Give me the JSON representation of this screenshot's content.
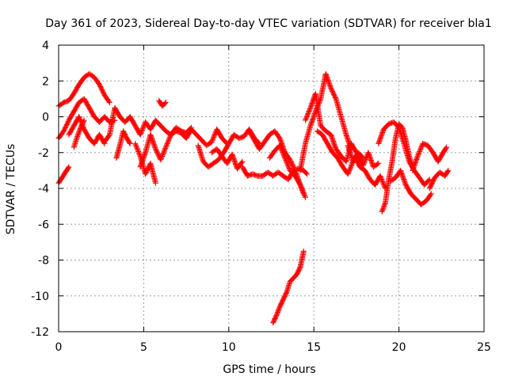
{
  "chart_data": {
    "type": "scatter",
    "title": "Day 361 of 2023, Sidereal Day-to-day VTEC variation (SDTVAR) for receiver bla1",
    "xlabel": "GPS time / hours",
    "ylabel": "SDTVAR / TECUs",
    "xlim": [
      0,
      25
    ],
    "ylim": [
      -12,
      4
    ],
    "xticks": [
      0,
      5,
      10,
      15,
      20,
      25
    ],
    "yticks": [
      -12,
      -10,
      -8,
      -6,
      -4,
      -2,
      0,
      2,
      4
    ],
    "grid": true,
    "marker": "+",
    "series": [
      {
        "name": "SDTVAR",
        "color": "#ff0000",
        "tracks": [
          {
            "x": [
              0.0,
              0.3,
              0.6,
              0.9,
              1.2,
              1.5,
              1.8,
              2.1,
              2.4,
              2.7,
              3.0
            ],
            "y": [
              0.6,
              0.8,
              0.9,
              1.3,
              1.8,
              2.2,
              2.4,
              2.2,
              1.8,
              1.2,
              0.8
            ]
          },
          {
            "x": [
              0.0,
              0.3,
              0.6,
              0.9,
              1.2,
              1.5,
              1.8,
              2.1,
              2.4,
              2.7,
              3.0,
              3.3
            ],
            "y": [
              -1.2,
              -0.8,
              -0.2,
              0.3,
              0.8,
              1.0,
              0.5,
              0.0,
              -0.3,
              0.0,
              -0.3,
              -0.2
            ]
          },
          {
            "x": [
              0.0,
              0.2,
              0.4,
              0.6
            ],
            "y": [
              -3.7,
              -3.4,
              -3.1,
              -2.8
            ]
          },
          {
            "x": [
              0.6,
              0.9,
              1.2,
              1.5,
              1.8,
              2.1,
              2.4,
              2.7
            ],
            "y": [
              -1.0,
              -0.5,
              0.0,
              -0.7,
              -1.2,
              -1.5,
              -1.0,
              -1.5
            ]
          },
          {
            "x": [
              0.9,
              1.1,
              1.3,
              1.5
            ],
            "y": [
              -1.7,
              -1.1,
              -0.6,
              -0.2
            ]
          },
          {
            "x": [
              2.7,
              3.0,
              3.3,
              3.6,
              3.9,
              4.2,
              4.5,
              4.8,
              5.1,
              5.4,
              5.7,
              6.0,
              6.3,
              6.6,
              6.9,
              7.2,
              7.5,
              7.8,
              8.1,
              8.4,
              8.7,
              9.0,
              9.3,
              9.6,
              9.9
            ],
            "y": [
              -1.4,
              -1.0,
              0.5,
              0.0,
              -0.3,
              0.0,
              -0.5,
              -1.0,
              -0.3,
              -0.7,
              -0.2,
              -0.5,
              -0.8,
              -1.0,
              -0.8,
              -0.9,
              -1.2,
              -0.7,
              -1.0,
              -1.3,
              -1.6,
              -1.4,
              -0.7,
              -1.2,
              -1.5
            ]
          },
          {
            "x": [
              3.4,
              3.6,
              3.8,
              4.0,
              4.2
            ],
            "y": [
              -2.3,
              -1.6,
              -0.8,
              -1.2,
              -1.5
            ]
          },
          {
            "x": [
              4.5,
              4.8,
              5.1,
              5.4,
              5.7
            ],
            "y": [
              -1.5,
              -2.2,
              -3.2,
              -2.6,
              -3.7
            ]
          },
          {
            "x": [
              4.8,
              5.1,
              5.4,
              5.7,
              6.0,
              6.3,
              6.6,
              6.9,
              7.2,
              7.5,
              7.8
            ],
            "y": [
              -2.8,
              -2.0,
              -1.0,
              -1.8,
              -2.4,
              -1.7,
              -1.0,
              -0.6,
              -0.8,
              -0.9,
              -0.6
            ]
          },
          {
            "x": [
              5.9,
              6.1,
              6.3
            ],
            "y": [
              0.9,
              0.6,
              0.8
            ]
          },
          {
            "x": [
              8.2,
              8.5,
              8.8,
              9.1,
              9.4,
              9.7,
              10.0,
              10.3,
              10.6,
              10.9,
              11.2,
              11.5,
              11.8
            ],
            "y": [
              -1.6,
              -2.5,
              -2.8,
              -2.6,
              -2.4,
              -2.0,
              -1.5,
              -1.0,
              -1.2,
              -1.1,
              -0.7,
              -1.2,
              -1.5
            ]
          },
          {
            "x": [
              9.0,
              9.3,
              9.6,
              9.9,
              10.2,
              10.5,
              10.8
            ],
            "y": [
              -2.0,
              -1.8,
              -2.2,
              -2.6,
              -2.1,
              -2.9,
              -2.5
            ]
          },
          {
            "x": [
              10.8,
              11.1,
              11.4,
              11.7,
              12.0,
              12.3,
              12.6,
              12.9,
              13.2,
              13.5,
              13.8,
              14.1,
              14.4,
              14.6
            ],
            "y": [
              -2.8,
              -3.3,
              -3.2,
              -3.3,
              -3.3,
              -3.1,
              -3.3,
              -3.1,
              -3.3,
              -3.5,
              -3.0,
              -2.9,
              -3.0,
              -3.2
            ]
          },
          {
            "x": [
              11.2,
              11.5,
              11.8,
              12.1,
              12.4,
              12.7,
              13.0,
              13.3,
              13.6,
              13.9,
              14.2,
              14.5
            ],
            "y": [
              -0.8,
              -1.3,
              -1.8,
              -1.4,
              -1.0,
              -0.8,
              -1.2,
              -2.0,
              -2.4,
              -3.0,
              -3.8,
              -4.5
            ]
          },
          {
            "x": [
              12.4,
              12.7,
              13.0,
              13.3,
              13.6,
              13.9,
              14.2,
              14.4
            ],
            "y": [
              -2.3,
              -1.9,
              -1.6,
              -2.3,
              -3.0,
              -3.3,
              -3.8,
              -4.3
            ]
          },
          {
            "x": [
              12.6,
              12.8,
              13.0,
              13.2,
              13.4,
              13.6,
              13.8,
              14.0,
              14.2,
              14.4
            ],
            "y": [
              -11.5,
              -11.1,
              -10.6,
              -10.2,
              -9.8,
              -9.2,
              -9.0,
              -8.8,
              -8.4,
              -7.5
            ]
          },
          {
            "x": [
              14.2,
              14.5,
              14.8,
              15.1,
              15.4,
              15.7,
              16.0,
              16.3,
              16.6,
              16.9,
              17.2
            ],
            "y": [
              -3.0,
              -1.5,
              -0.5,
              0.3,
              1.0,
              2.4,
              1.6,
              1.0,
              0.0,
              -1.0,
              -1.8
            ]
          },
          {
            "x": [
              14.5,
              14.8,
              15.1,
              15.4,
              15.7,
              16.0,
              16.3,
              16.6,
              16.9,
              17.2,
              17.5
            ],
            "y": [
              -0.2,
              0.5,
              1.3,
              -0.5,
              -0.8,
              -1.0,
              -1.8,
              -2.2,
              -2.5,
              -1.5,
              -2.0
            ]
          },
          {
            "x": [
              15.2,
              15.5,
              15.8,
              16.1,
              16.4,
              16.7,
              17.0,
              17.3,
              17.6,
              17.9
            ],
            "y": [
              -0.8,
              -1.0,
              -1.5,
              -2.0,
              -2.3,
              -2.8,
              -3.2,
              -2.5,
              -2.0,
              -2.3
            ]
          },
          {
            "x": [
              17.4,
              17.7,
              18.0,
              18.3,
              18.6,
              18.9,
              19.2
            ],
            "y": [
              -2.2,
              -2.8,
              -3.0,
              -3.5,
              -3.8,
              -3.3,
              -4.0
            ]
          },
          {
            "x": [
              17.0,
              17.3,
              17.6,
              17.9,
              18.2,
              18.5,
              18.8
            ],
            "y": [
              -1.6,
              -2.5,
              -2.2,
              -2.7,
              -2.0,
              -2.8,
              -2.6
            ]
          },
          {
            "x": [
              19.0,
              19.2,
              19.4,
              19.6,
              19.8,
              20.0,
              20.2,
              20.4,
              20.6,
              20.8
            ],
            "y": [
              -5.3,
              -4.8,
              -3.5,
              -2.5,
              -1.2,
              -0.4,
              -0.6,
              -1.3,
              -2.2,
              -2.8
            ]
          },
          {
            "x": [
              18.8,
              19.1,
              19.4,
              19.7,
              20.0,
              20.3,
              20.6,
              20.9,
              21.2,
              21.5,
              21.8
            ],
            "y": [
              -1.5,
              -0.7,
              -0.4,
              -0.3,
              -0.6,
              -1.5,
              -2.5,
              -3.0,
              -3.4,
              -3.8,
              -3.5
            ]
          },
          {
            "x": [
              19.5,
              19.8,
              20.1,
              20.4,
              20.7,
              21.0,
              21.3,
              21.6,
              21.9
            ],
            "y": [
              -3.6,
              -3.4,
              -3.0,
              -3.8,
              -4.3,
              -4.6,
              -4.9,
              -4.7,
              -4.3
            ]
          },
          {
            "x": [
              20.8,
              21.1,
              21.4,
              21.7,
              22.0,
              22.3,
              22.6,
              22.8
            ],
            "y": [
              -3.0,
              -2.2,
              -1.5,
              -1.6,
              -2.0,
              -2.5,
              -2.0,
              -1.7
            ]
          },
          {
            "x": [
              21.8,
              22.1,
              22.4,
              22.7,
              22.9
            ],
            "y": [
              -4.0,
              -3.4,
              -3.1,
              -3.3,
              -3.0
            ]
          }
        ]
      }
    ]
  }
}
